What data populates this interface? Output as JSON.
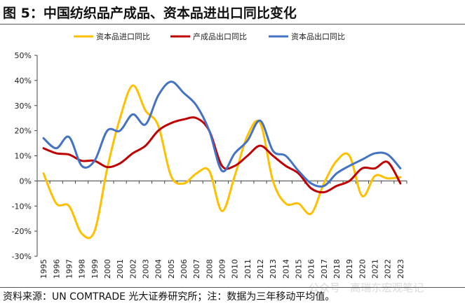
{
  "title": "图 5：中国纺织品产成品、资本品进出口同比变化",
  "source": "资料来源：UN COMTRADE 光大证券研究所；注：数据为三年移动平均值。",
  "watermark": "公众号 · 高瑞东宏观笔记",
  "chart_data": {
    "type": "line",
    "title": "图 5：中国纺织品产成品、资本品进出口同比变化",
    "xlabel": "",
    "ylabel": "",
    "ylim": [
      -30,
      50
    ],
    "yticks": [
      "50%",
      "40%",
      "30%",
      "20%",
      "10%",
      "0%",
      "-10%",
      "-20%",
      "-30%"
    ],
    "ytick_values": [
      50,
      40,
      30,
      20,
      10,
      0,
      -10,
      -20,
      -30
    ],
    "legend_position": "top",
    "categories": [
      "1995",
      "1996",
      "1997",
      "1998",
      "1999",
      "2000",
      "2001",
      "2002",
      "2003",
      "2004",
      "2005",
      "2006",
      "2007",
      "2008",
      "2009",
      "2010",
      "2011",
      "2012",
      "2013",
      "2014",
      "2015",
      "2016",
      "2017",
      "2018",
      "2019",
      "2020",
      "2021",
      "2022",
      "2023"
    ],
    "series": [
      {
        "name": "资本品进口同比",
        "color": "#FFC000",
        "values": [
          3,
          -9,
          -10,
          -21,
          -20,
          5,
          25,
          38,
          28,
          22,
          2,
          -1,
          3,
          4,
          -12,
          2,
          18,
          23,
          0,
          -9,
          -9,
          -13,
          -1,
          8,
          10,
          -6,
          2,
          1,
          1.5
        ]
      },
      {
        "name": "产成品出口同比",
        "color": "#C00000",
        "values": [
          13,
          11,
          10.5,
          8,
          8,
          5.5,
          7,
          11,
          14,
          20,
          23,
          24.5,
          25,
          20,
          6,
          6,
          10,
          14,
          10,
          6,
          3,
          -3,
          -4.5,
          -2,
          0,
          5,
          5,
          7.5,
          -1
        ]
      },
      {
        "name": "资本品出口同比",
        "color": "#4472C4",
        "values": [
          17,
          13,
          17.5,
          6,
          8,
          20,
          20,
          26.5,
          22.5,
          34,
          39.5,
          35,
          30,
          20,
          4,
          11,
          16,
          24,
          12,
          10,
          4,
          -1,
          -2,
          3,
          6,
          8.5,
          11,
          10.5,
          5
        ]
      }
    ]
  }
}
